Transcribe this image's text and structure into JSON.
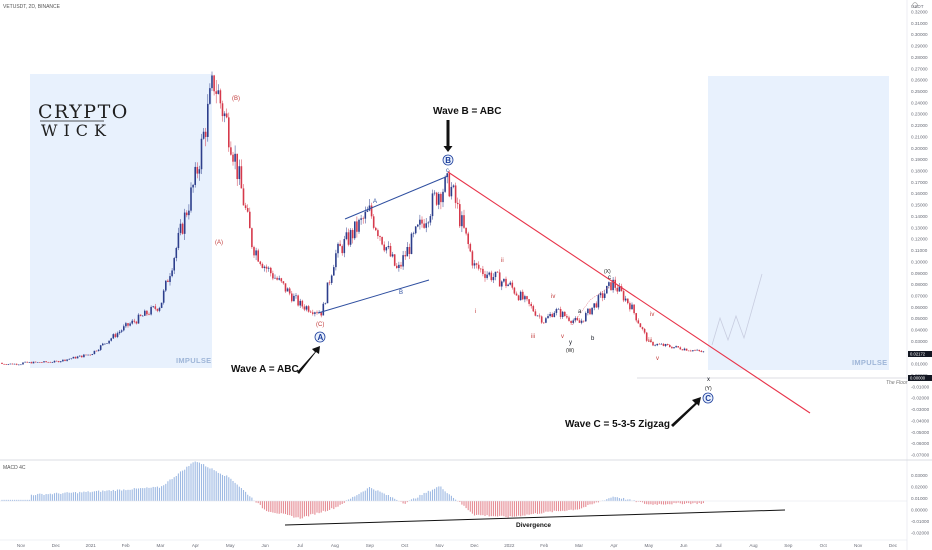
{
  "header": {
    "symbol": "VETUSDT, 2D, BINANCE",
    "quote": "USDT"
  },
  "logo": {
    "line1": "CRYPTO",
    "line2": "WICK"
  },
  "labels": {
    "impulse_left": "IMPULSE",
    "impulse_right": "IMPULSE",
    "wave_a": "Wave A = ABC",
    "wave_b": "Wave B = ABC",
    "wave_c": "Wave C =  5-3-5 Zigzag",
    "floor": "The Floor",
    "divergence": "Divergence",
    "macd": "MACD 4C",
    "price_current": "0.02172",
    "price_floor": "0.00000"
  },
  "wave_marks": {
    "A_circle": "A",
    "B_circle": "B",
    "C_circle": "C",
    "paren_A": "(A)",
    "paren_B": "(B)",
    "paren_C": "(C)",
    "sub_A": "A",
    "sub_B": "B",
    "sub_c": "c",
    "W": "(W)",
    "X": "(X)",
    "Y": "(Y)",
    "i": "i",
    "ii": "ii",
    "iii": "iii",
    "iv": "iv",
    "v": "v",
    "a": "a",
    "b": "b",
    "c_small": "c",
    "x_small": "x",
    "y_small": "y"
  },
  "colors": {
    "up": "#2c3e8c",
    "down": "#d6394b",
    "trendline": "#e8344a",
    "channel": "#2f4fa0",
    "impulse_box": "#e8f1fd",
    "macd_pos": "#9db9e3",
    "macd_neg": "#e58a93"
  },
  "chart_data": {
    "type": "candlestick",
    "title": "VETUSDT, 2D, BINANCE",
    "y_axis": {
      "unit": "USDT",
      "ticks": [
        "0.32000",
        "0.31000",
        "0.30000",
        "0.29000",
        "0.28000",
        "0.27000",
        "0.26000",
        "0.25000",
        "0.24000",
        "0.23000",
        "0.22000",
        "0.21000",
        "0.20000",
        "0.19000",
        "0.18000",
        "0.17000",
        "0.16000",
        "0.15000",
        "0.14000",
        "0.13000",
        "0.12000",
        "0.11000",
        "0.10000",
        "0.09000",
        "0.08000",
        "0.07000",
        "0.06000",
        "0.05000",
        "0.04000",
        "0.03000",
        "0.02000",
        "0.01000",
        "0.00000",
        "-0.01000",
        "-0.02000",
        "-0.03000",
        "-0.04000",
        "-0.05000",
        "-0.06000",
        "-0.07000"
      ],
      "range": [
        -0.07,
        0.325
      ]
    },
    "x_axis": {
      "ticks": [
        "Nov",
        "Dec",
        "2021",
        "Feb",
        "Mar",
        "Apr",
        "May",
        "Jun",
        "Jul",
        "Aug",
        "Sep",
        "Oct",
        "Nov",
        "Dec",
        "2022",
        "Feb",
        "Mar",
        "Apr",
        "May",
        "Jun",
        "Jul",
        "Aug",
        "Sep",
        "Oct",
        "Nov",
        "Dec"
      ]
    },
    "price_series": [
      {
        "x": "2020-11",
        "y": 0.012
      },
      {
        "x": "2020-12",
        "y": 0.013
      },
      {
        "x": "2021-01",
        "y": 0.02
      },
      {
        "x": "2021-02",
        "y": 0.045
      },
      {
        "x": "2021-03",
        "y": 0.065
      },
      {
        "x": "2021-04",
        "y": 0.18
      },
      {
        "x": "2021-04-17",
        "y": 0.27
      },
      {
        "x": "2021-05",
        "y": 0.22
      },
      {
        "x": "2021-05-20",
        "y": 0.12
      },
      {
        "x": "2021-06",
        "y": 0.1
      },
      {
        "x": "2021-07",
        "y": 0.065
      },
      {
        "x": "2021-07-20",
        "y": 0.058
      },
      {
        "x": "2021-08",
        "y": 0.11
      },
      {
        "x": "2021-09",
        "y": 0.15
      },
      {
        "x": "2021-09-25",
        "y": 0.095
      },
      {
        "x": "2021-10",
        "y": 0.11
      },
      {
        "x": "2021-11",
        "y": 0.17
      },
      {
        "x": "2021-11-10",
        "y": 0.175
      },
      {
        "x": "2021-12",
        "y": 0.1
      },
      {
        "x": "2022-01",
        "y": 0.083
      },
      {
        "x": "2022-02",
        "y": 0.05
      },
      {
        "x": "2022-02-10",
        "y": 0.06
      },
      {
        "x": "2022-03",
        "y": 0.048
      },
      {
        "x": "2022-03-30",
        "y": 0.085
      },
      {
        "x": "2022-04-15",
        "y": 0.065
      },
      {
        "x": "2022-05",
        "y": 0.03
      },
      {
        "x": "2022-06",
        "y": 0.025
      },
      {
        "x": "2022-06-18",
        "y": 0.02172
      }
    ],
    "macd_profile": [
      {
        "x": "2020-11",
        "y": 0.005
      },
      {
        "x": "2021-01",
        "y": 0.008
      },
      {
        "x": "2021-03",
        "y": 0.012
      },
      {
        "x": "2021-04",
        "y": 0.035
      },
      {
        "x": "2021-05",
        "y": 0.02
      },
      {
        "x": "2021-06",
        "y": -0.008
      },
      {
        "x": "2021-07",
        "y": -0.015
      },
      {
        "x": "2021-08",
        "y": -0.006
      },
      {
        "x": "2021-09",
        "y": 0.012
      },
      {
        "x": "2021-10",
        "y": -0.002
      },
      {
        "x": "2021-11",
        "y": 0.013
      },
      {
        "x": "2021-12",
        "y": -0.012
      },
      {
        "x": "2022-01",
        "y": -0.014
      },
      {
        "x": "2022-02",
        "y": -0.01
      },
      {
        "x": "2022-03",
        "y": -0.007
      },
      {
        "x": "2022-04",
        "y": 0.004
      },
      {
        "x": "2022-05",
        "y": -0.003
      },
      {
        "x": "2022-06",
        "y": -0.002
      }
    ],
    "macd_ticks": [
      "0.03000",
      "0.02000",
      "0.01000",
      "0.00000",
      "-0.01000",
      "-0.02000"
    ]
  }
}
